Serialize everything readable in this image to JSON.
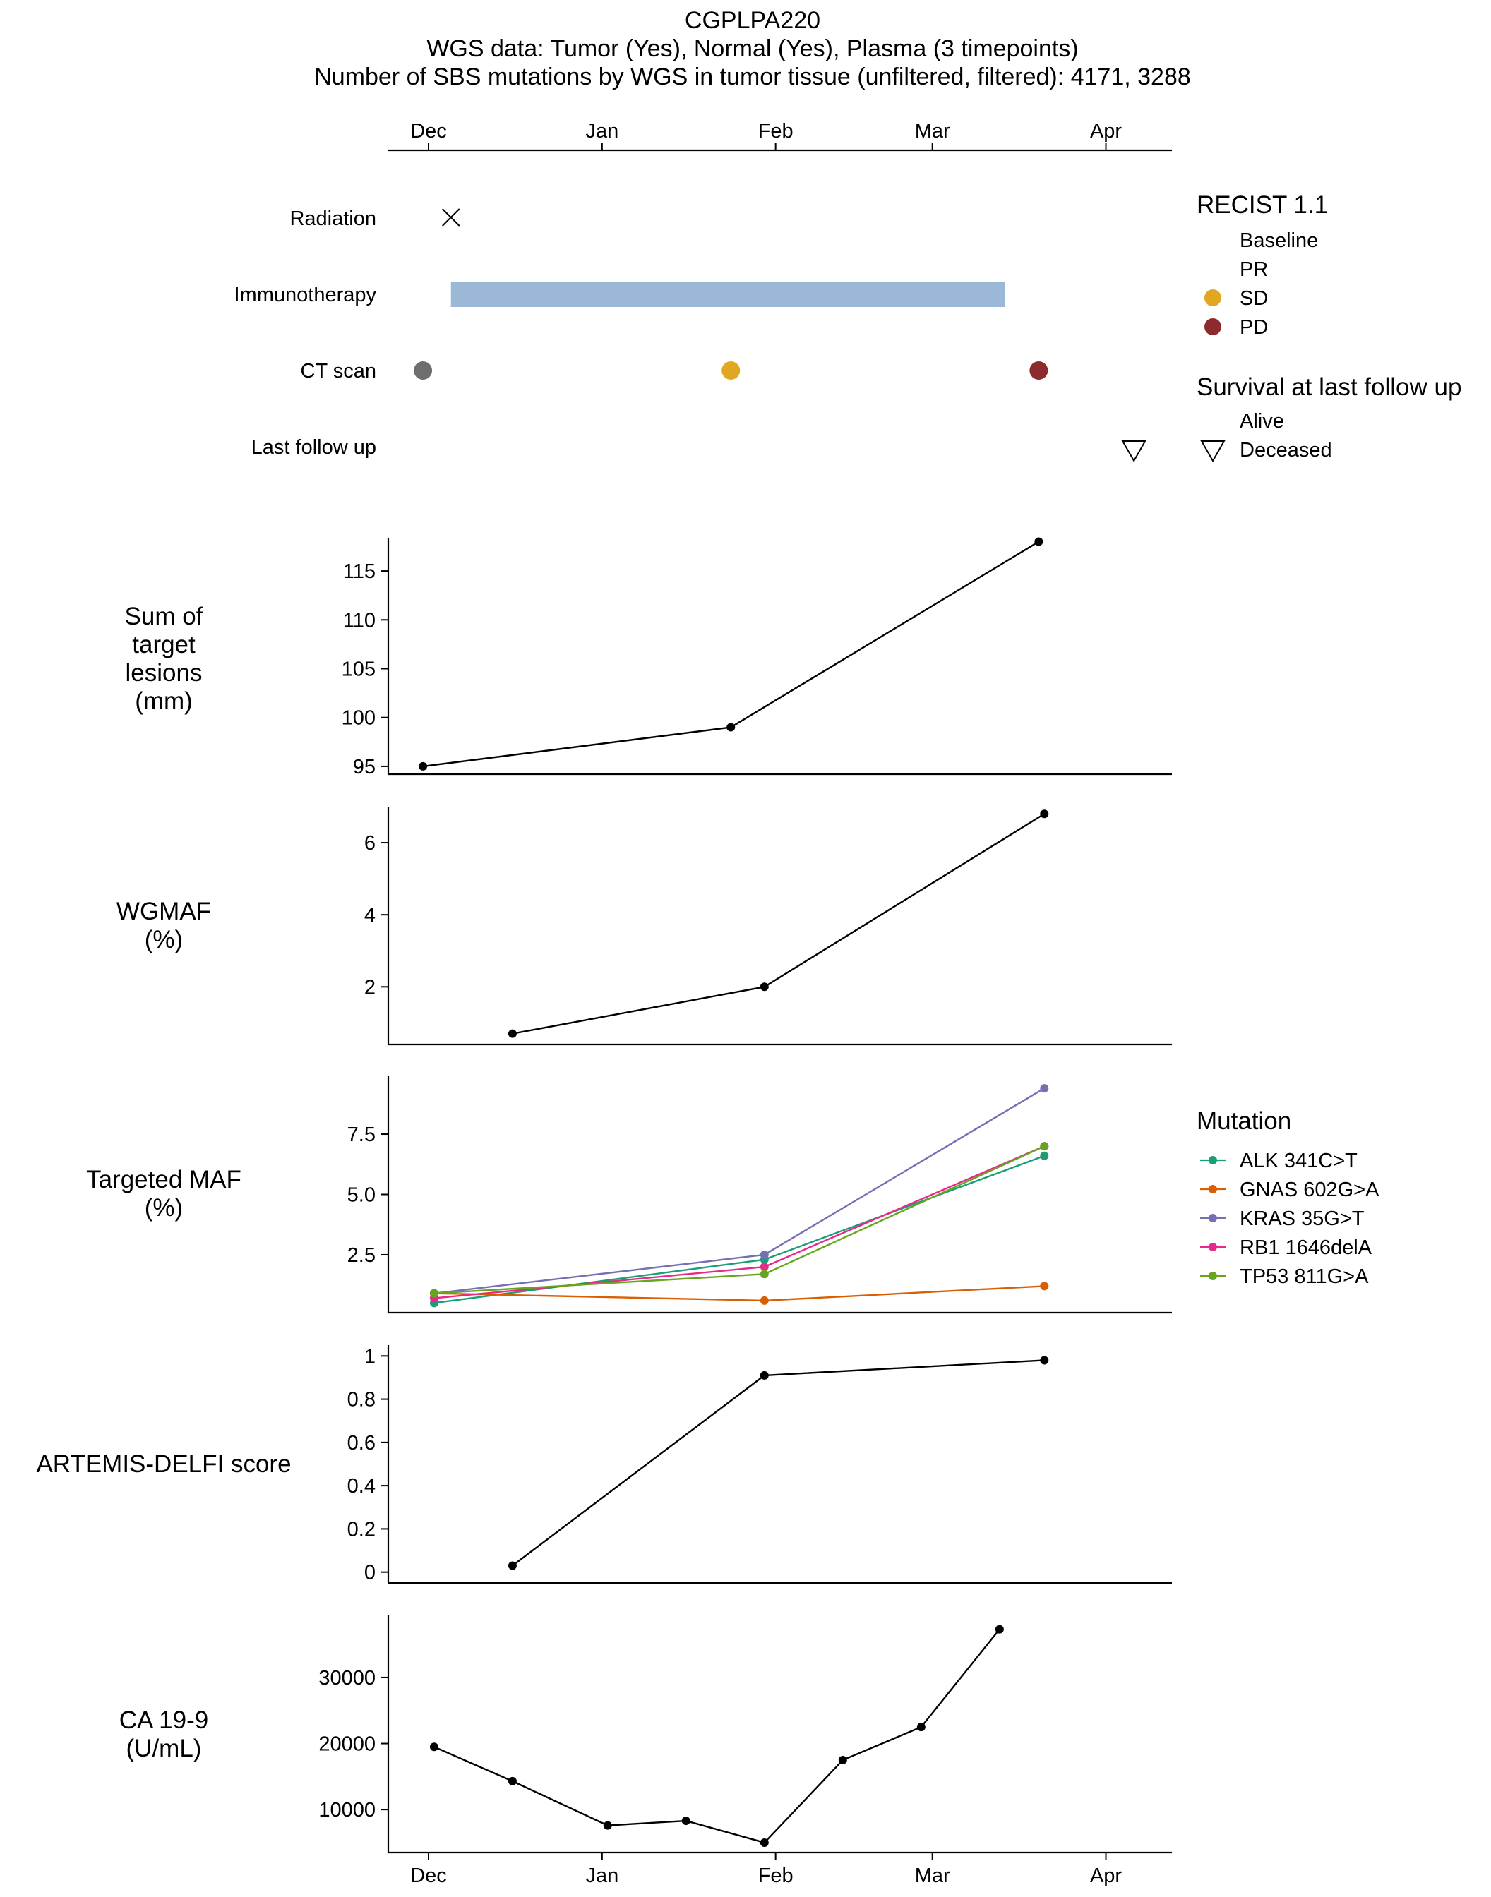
{
  "title": {
    "line1": "CGPLPA220",
    "line2": "WGS data: Tumor (Yes), Normal (Yes), Plasma (3 timepoints)",
    "line3": "Number of SBS mutations by WGS in tumor tissue (unfiltered, filtered): 4171, 3288"
  },
  "months": [
    {
      "label": "Dec",
      "day": 0
    },
    {
      "label": "Jan",
      "day": 31
    },
    {
      "label": "Feb",
      "day": 62
    },
    {
      "label": "Mar",
      "day": 90
    },
    {
      "label": "Apr",
      "day": 121
    }
  ],
  "timeline": {
    "rows": [
      "Radiation",
      "Immunotherapy",
      "CT scan",
      "Last follow up"
    ],
    "radiation": {
      "day": 4,
      "marker": "x-cross"
    },
    "immunotherapy": {
      "start_day": 4,
      "end_day": 103,
      "color": "#9bb8d7"
    },
    "ct_scans": [
      {
        "day": -1,
        "status": "Baseline",
        "color": "#6e6e6e"
      },
      {
        "day": 54,
        "status": "SD",
        "color": "#e0a722"
      },
      {
        "day": 109,
        "status": "PD",
        "color": "#8c2a2d"
      }
    ],
    "last_follow_up": {
      "day": 126,
      "marker": "triangle-down"
    }
  },
  "legend_recist": {
    "title": "RECIST 1.1",
    "items": [
      {
        "label": "Baseline",
        "color": ""
      },
      {
        "label": "PR",
        "color": ""
      },
      {
        "label": "SD",
        "color": "#e0a722"
      },
      {
        "label": "PD",
        "color": "#8c2a2d"
      }
    ]
  },
  "legend_survival": {
    "title": "Survival at last follow up",
    "items": [
      {
        "label": "Alive",
        "marker": ""
      },
      {
        "label": "Deceased",
        "marker": "triangle-down"
      }
    ]
  },
  "legend_mutation": {
    "title": "Mutation",
    "items": [
      {
        "label": "ALK 341C>T",
        "color": "#1b9e77"
      },
      {
        "label": "GNAS 602G>A",
        "color": "#d95f02"
      },
      {
        "label": "KRAS 35G>T",
        "color": "#7570b3"
      },
      {
        "label": "RB1 1646delA",
        "color": "#e7298a"
      },
      {
        "label": "TP53 811G>A",
        "color": "#66a61e"
      }
    ]
  },
  "chart_data": [
    {
      "type": "line",
      "ylabel": [
        "Sum of",
        "target",
        "lesions",
        "(mm)"
      ],
      "ylim": [
        94.2,
        118.4
      ],
      "yticks": [
        95,
        100,
        105,
        110,
        115
      ],
      "series": [
        {
          "color": "#000000",
          "x_days": [
            -1,
            54,
            109
          ],
          "values": [
            95,
            99,
            118
          ]
        }
      ]
    },
    {
      "type": "line",
      "ylabel": [
        "WGMAF",
        "(%)"
      ],
      "ylim": [
        0.4,
        7.0
      ],
      "yticks": [
        2,
        4,
        6
      ],
      "series": [
        {
          "color": "#000000",
          "x_days": [
            15,
            60,
            110
          ],
          "values": [
            0.7,
            2.0,
            6.8
          ]
        }
      ]
    },
    {
      "type": "line",
      "ylabel": [
        "Targeted MAF",
        "(%)"
      ],
      "ylim": [
        0.1,
        9.9
      ],
      "ytick_labels": [
        "2.5",
        "5.0",
        "7.5"
      ],
      "yticks": [
        2.5,
        5.0,
        7.5
      ],
      "series": [
        {
          "name": "ALK 341C>T",
          "color": "#1b9e77",
          "x_days": [
            1,
            60,
            110
          ],
          "values": [
            0.5,
            2.3,
            6.6
          ]
        },
        {
          "name": "GNAS 602G>A",
          "color": "#d95f02",
          "x_days": [
            1,
            60,
            110
          ],
          "values": [
            0.9,
            0.6,
            1.2
          ]
        },
        {
          "name": "KRAS 35G>T",
          "color": "#7570b3",
          "x_days": [
            1,
            60,
            110
          ],
          "values": [
            0.9,
            2.5,
            9.4
          ]
        },
        {
          "name": "RB1 1646delA",
          "color": "#e7298a",
          "x_days": [
            1,
            60,
            110
          ],
          "values": [
            0.7,
            2.0,
            7.0
          ]
        },
        {
          "name": "TP53 811G>A",
          "color": "#66a61e",
          "x_days": [
            1,
            60,
            110
          ],
          "values": [
            0.9,
            1.7,
            7.0
          ]
        }
      ]
    },
    {
      "type": "line",
      "ylabel": [
        "ARTEMIS-DELFI score"
      ],
      "ylim": [
        -0.05,
        1.05
      ],
      "ytick_labels": [
        "0",
        "0.2",
        "0.4",
        "0.6",
        "0.8",
        "1"
      ],
      "yticks": [
        0,
        0.2,
        0.4,
        0.6,
        0.8,
        1
      ],
      "series": [
        {
          "color": "#000000",
          "x_days": [
            15,
            60,
            110
          ],
          "values": [
            0.03,
            0.91,
            0.98
          ]
        }
      ]
    },
    {
      "type": "line",
      "ylabel": [
        "CA 19-9",
        "(U/mL)"
      ],
      "ylim": [
        3500,
        39500
      ],
      "yticks": [
        10000,
        20000,
        30000
      ],
      "series": [
        {
          "color": "#000000",
          "x_days": [
            1,
            15,
            32,
            46,
            60,
            74,
            88,
            102
          ],
          "values": [
            19500,
            14300,
            7600,
            8300,
            5000,
            17500,
            22500,
            37300
          ]
        }
      ]
    }
  ]
}
